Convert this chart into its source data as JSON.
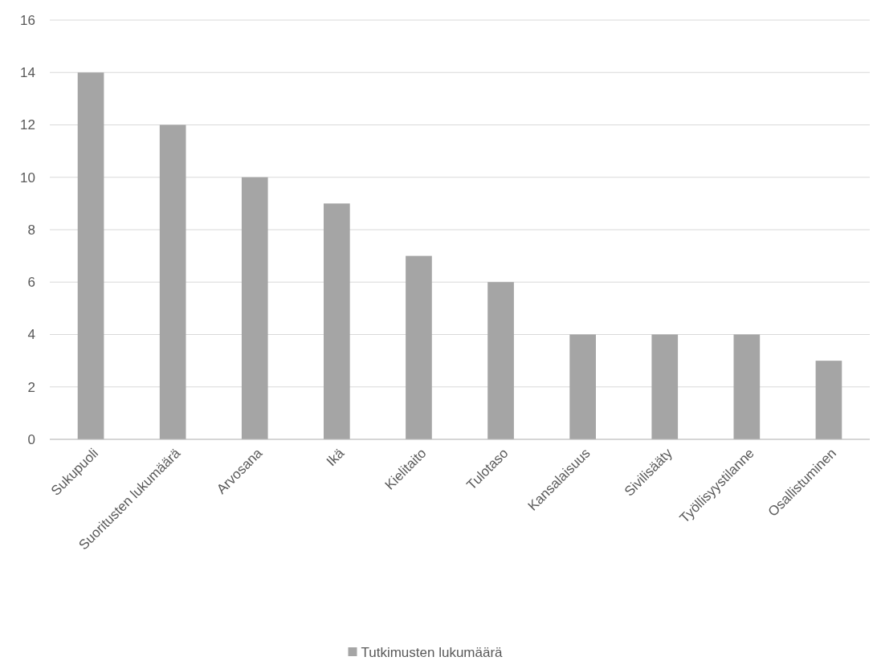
{
  "chart_data": {
    "type": "bar",
    "categories": [
      "Sukupuoli",
      "Suoritusten lukumäärä",
      "Arvosana",
      "Ikä",
      "Kielitaito",
      "Tulotaso",
      "Kansalaisuus",
      "Sivilisääty",
      "Työllisyystilanne",
      "Osallistuminen"
    ],
    "series": [
      {
        "name": "Tutkimusten lukumäärä",
        "color": "#a5a5a5",
        "values": [
          14,
          12,
          10,
          9,
          7,
          6,
          4,
          4,
          4,
          3
        ]
      }
    ],
    "ylim": [
      0,
      16
    ],
    "yticks": [
      0,
      2,
      4,
      6,
      8,
      10,
      12,
      14,
      16
    ],
    "grid": "y",
    "legend": "bottom"
  }
}
